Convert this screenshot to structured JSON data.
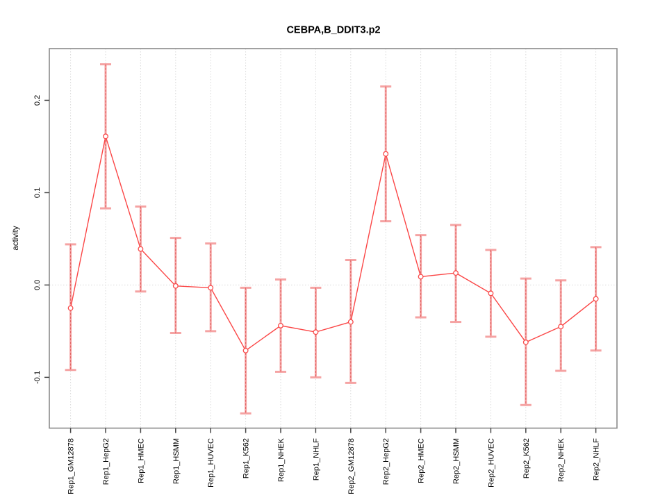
{
  "chart_data": {
    "type": "line",
    "title": "CEBPA,B_DDIT3.p2",
    "xlabel": "",
    "ylabel": "activity",
    "categories": [
      "Rep1_GM12878",
      "Rep1_HepG2",
      "Rep1_HMEC",
      "Rep1_HSMM",
      "Rep1_HUVEC",
      "Rep1_K562",
      "Rep1_NHEK",
      "Rep1_NHLF",
      "Rep2_GM12878",
      "Rep2_HepG2",
      "Rep2_HMEC",
      "Rep2_HSMM",
      "Rep2_HUVEC",
      "Rep2_K562",
      "Rep2_NHEK",
      "Rep2_NHLF"
    ],
    "series": [
      {
        "name": "activity",
        "values": [
          -0.025,
          0.161,
          0.039,
          -0.001,
          -0.003,
          -0.071,
          -0.044,
          -0.051,
          -0.04,
          0.142,
          0.009,
          0.013,
          -0.009,
          -0.062,
          -0.045,
          -0.015
        ],
        "error_upper": [
          0.044,
          0.239,
          0.085,
          0.051,
          0.045,
          -0.003,
          0.006,
          -0.003,
          0.027,
          0.215,
          0.054,
          0.065,
          0.038,
          0.007,
          0.005,
          0.041
        ],
        "error_lower": [
          -0.092,
          0.083,
          -0.007,
          -0.052,
          -0.05,
          -0.139,
          -0.094,
          -0.1,
          -0.106,
          0.069,
          -0.035,
          -0.04,
          -0.056,
          -0.13,
          -0.093,
          -0.071
        ]
      }
    ],
    "y_ticks": [
      -0.1,
      0.0,
      0.1,
      0.2
    ],
    "y_tick_labels": [
      "-0.1",
      "0.0",
      "0.1",
      "0.2"
    ],
    "ylim": [
      -0.155,
      0.256
    ],
    "grid": "vertical dotted gridline per category, dotted horizontal line at y=0",
    "legend": "none",
    "marker": "open-circle"
  },
  "colors": {
    "background": "#ffffff",
    "line": "#fb4646",
    "marker_stroke": "#f94b4b",
    "error_bar": "#f5a3a3",
    "error_core": "#e05c5c",
    "frame": "#8a8a8a",
    "tick": "#454545",
    "grid": "#d9d9d9",
    "text": "#000000"
  }
}
